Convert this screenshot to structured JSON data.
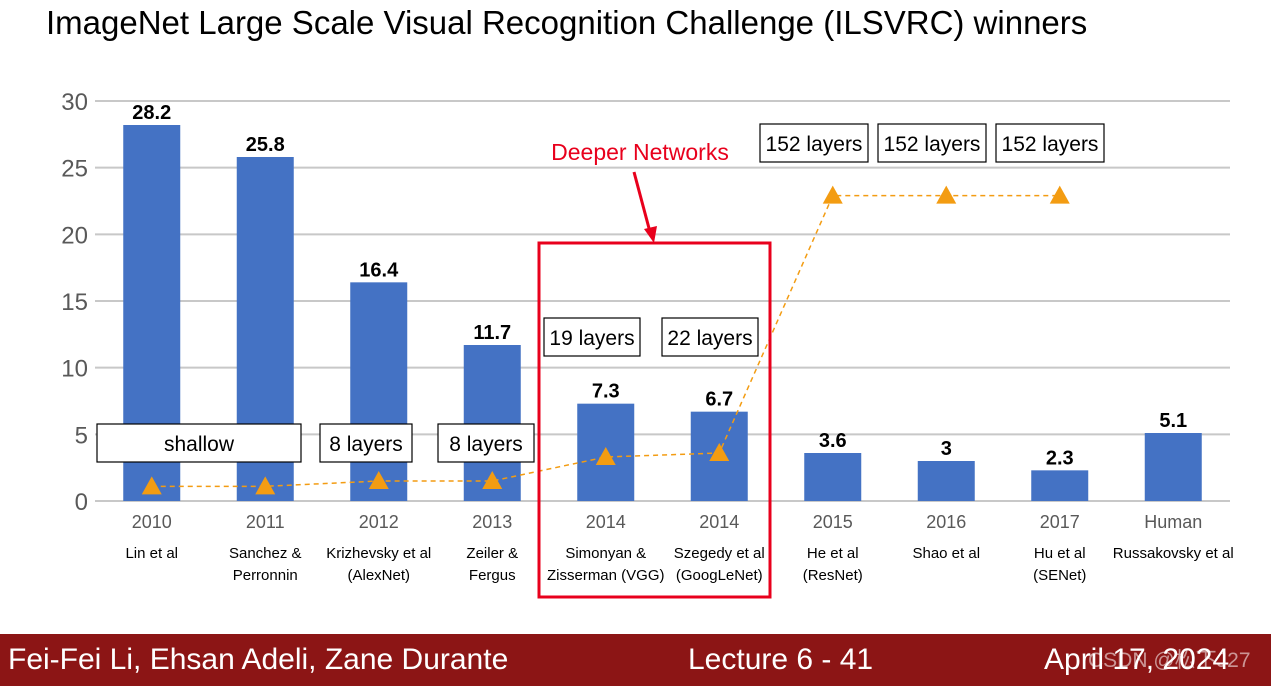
{
  "slide": {
    "title": "ImageNet Large Scale Visual Recognition Challenge (ILSVRC) winners"
  },
  "footer": {
    "authors": "Fei-Fei Li, Ehsan Adeli, Zane Durante",
    "lecture": "Lecture 6 -   41",
    "date": "April 17, 2024",
    "watermark": "CSDN @松下J27"
  },
  "chart_data": {
    "type": "bar",
    "ylim": [
      0,
      30
    ],
    "yticks": [
      0,
      5,
      10,
      15,
      20,
      25,
      30
    ],
    "grid": true,
    "categories": [
      "2010",
      "2011",
      "2012",
      "2013",
      "2014",
      "2014",
      "2015",
      "2016",
      "2017",
      "Human"
    ],
    "entries": [
      "Lin et al",
      "Sanchez &\nPerronnin",
      "Krizhevsky et al\n(AlexNet)",
      "Zeiler &\nFergus",
      "Simonyan &\nZisserman (VGG)",
      "Szegedy et al\n(GoogLeNet)",
      "He et al\n(ResNet)",
      "Shao et al",
      "Hu et al\n(SENet)",
      "Russakovsky et al"
    ],
    "values": [
      28.2,
      25.8,
      16.4,
      11.7,
      7.3,
      6.7,
      3.6,
      3,
      2.3,
      5.1
    ],
    "value_labels": [
      "28.2",
      "25.8",
      "16.4",
      "11.7",
      "7.3",
      "6.7",
      "3.6",
      "3",
      "2.3",
      "5.1"
    ],
    "bar_color": "#4472c4",
    "depth_series": {
      "values": [
        1.1,
        1.1,
        1.5,
        1.5,
        3.3,
        3.6,
        22.9,
        22.9,
        22.9
      ],
      "labels": [
        "shallow",
        "",
        "8 layers",
        "8 layers",
        "19 layers",
        "22 layers",
        "152 layers",
        "152 layers",
        "152 layers"
      ],
      "color": "#f39c12"
    },
    "highlight": {
      "label": "Deeper Networks",
      "color": "#e8001c",
      "from_index": 4,
      "to_index": 5
    }
  }
}
